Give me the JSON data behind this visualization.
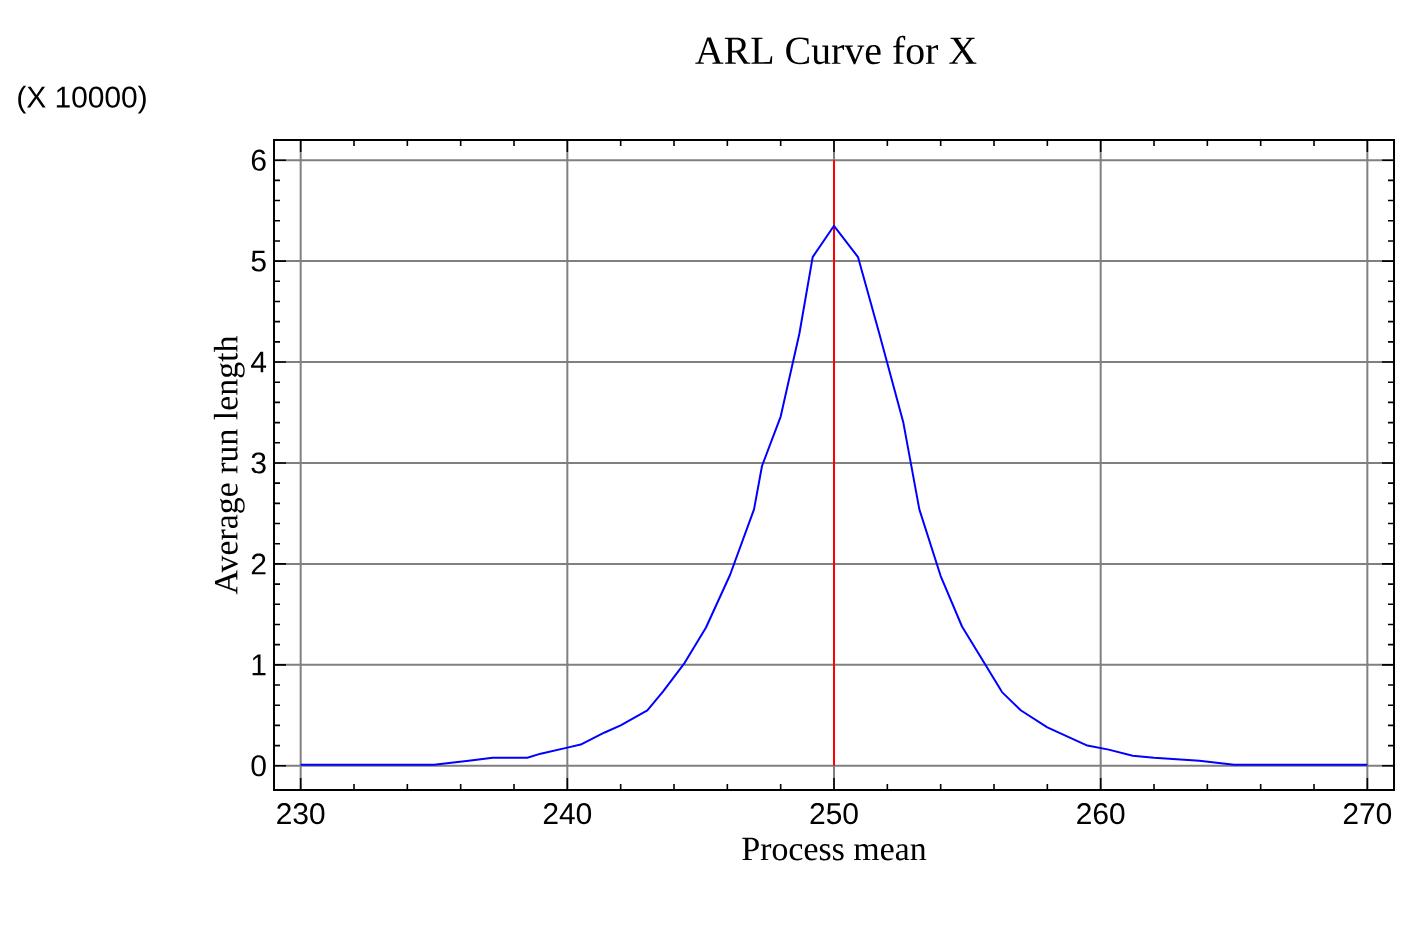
{
  "chart_data": {
    "type": "line",
    "title": "ARL Curve for X",
    "xlabel": "Process mean",
    "ylabel": "Average run length",
    "annotations": [
      "(X 10000)"
    ],
    "x": [
      230,
      235,
      236.3,
      237.2,
      238.5,
      239,
      240,
      240.5,
      241.4,
      242,
      243,
      243.6,
      244.4,
      245.2,
      246.1,
      247,
      247.3,
      248,
      248.7,
      249.2,
      250,
      250.9,
      251.7,
      252.6,
      253.2,
      254,
      254.8,
      255.7,
      256.3,
      257,
      258,
      259.5,
      260.3,
      261.2,
      262,
      263.7,
      265,
      270
    ],
    "series": [
      {
        "color": "#0000ff",
        "values": [
          0.01,
          0.01,
          0.05,
          0.08,
          0.08,
          0.12,
          0.18,
          0.21,
          0.33,
          0.4,
          0.55,
          0.74,
          1.02,
          1.37,
          1.89,
          2.54,
          2.97,
          3.46,
          4.28,
          5.04,
          5.35,
          5.04,
          4.28,
          3.4,
          2.54,
          1.88,
          1.38,
          0.99,
          0.73,
          0.55,
          0.38,
          0.2,
          0.16,
          0.1,
          0.08,
          0.05,
          0.01,
          0.01
        ]
      }
    ],
    "xlim": [
      229,
      271
    ],
    "ylim": [
      -0.24,
      6.2
    ],
    "xticks": [
      230,
      240,
      250,
      260,
      270
    ],
    "yticks": [
      0,
      1,
      2,
      3,
      4,
      5,
      6
    ],
    "grid": true,
    "marker": "none",
    "line_style": "solid",
    "ref_lines": [
      {
        "axis": "x",
        "value": 250,
        "color": "#ff0000"
      }
    ]
  }
}
